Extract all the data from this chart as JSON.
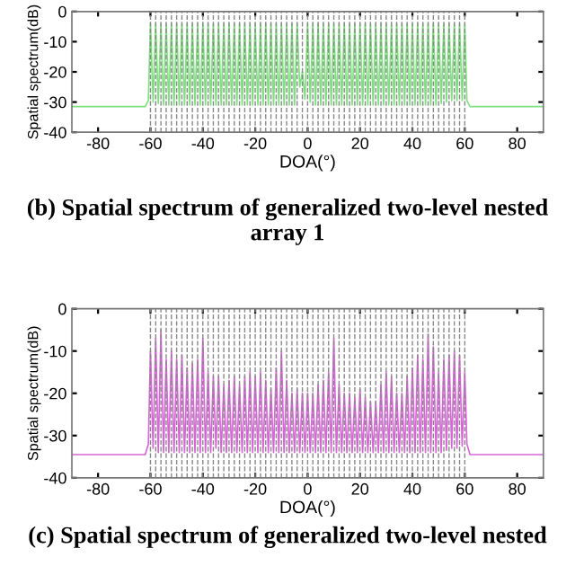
{
  "chart_data": [
    {
      "type": "line",
      "title": "(b) Spatial spectrum of generalized two-level nested array 1",
      "xlabel": "DOA(°)",
      "ylabel": "Spatial spectrum(dB)",
      "xlim": [
        -90,
        90
      ],
      "xticks": [
        -80,
        -60,
        -40,
        -20,
        0,
        20,
        40,
        60,
        80
      ],
      "ylim": [
        -40,
        0
      ],
      "yticks": [
        -40,
        -30,
        -20,
        -10,
        0
      ],
      "grid": false,
      "marker": "none",
      "line_style": "solid",
      "ref_lines": [
        {
          "axis": "x",
          "value": -60
        },
        {
          "axis": "x",
          "value": -58
        },
        {
          "axis": "x",
          "value": -56
        },
        {
          "axis": "x",
          "value": -54
        },
        {
          "axis": "x",
          "value": -52
        },
        {
          "axis": "x",
          "value": -50
        },
        {
          "axis": "x",
          "value": -48
        },
        {
          "axis": "x",
          "value": -46
        },
        {
          "axis": "x",
          "value": -44
        },
        {
          "axis": "x",
          "value": -42
        },
        {
          "axis": "x",
          "value": -40
        },
        {
          "axis": "x",
          "value": -38
        },
        {
          "axis": "x",
          "value": -36
        },
        {
          "axis": "x",
          "value": -34
        },
        {
          "axis": "x",
          "value": -32
        },
        {
          "axis": "x",
          "value": -30
        },
        {
          "axis": "x",
          "value": -28
        },
        {
          "axis": "x",
          "value": -26
        },
        {
          "axis": "x",
          "value": -24
        },
        {
          "axis": "x",
          "value": -22
        },
        {
          "axis": "x",
          "value": -20
        },
        {
          "axis": "x",
          "value": -18
        },
        {
          "axis": "x",
          "value": -16
        },
        {
          "axis": "x",
          "value": -14
        },
        {
          "axis": "x",
          "value": -12
        },
        {
          "axis": "x",
          "value": -10
        },
        {
          "axis": "x",
          "value": -8
        },
        {
          "axis": "x",
          "value": -6
        },
        {
          "axis": "x",
          "value": -4
        },
        {
          "axis": "x",
          "value": -2
        },
        {
          "axis": "x",
          "value": 0
        },
        {
          "axis": "x",
          "value": 2
        },
        {
          "axis": "x",
          "value": 4
        },
        {
          "axis": "x",
          "value": 6
        },
        {
          "axis": "x",
          "value": 8
        },
        {
          "axis": "x",
          "value": 10
        },
        {
          "axis": "x",
          "value": 12
        },
        {
          "axis": "x",
          "value": 14
        },
        {
          "axis": "x",
          "value": 16
        },
        {
          "axis": "x",
          "value": 18
        },
        {
          "axis": "x",
          "value": 20
        },
        {
          "axis": "x",
          "value": 22
        },
        {
          "axis": "x",
          "value": 24
        },
        {
          "axis": "x",
          "value": 26
        },
        {
          "axis": "x",
          "value": 28
        },
        {
          "axis": "x",
          "value": 30
        },
        {
          "axis": "x",
          "value": 32
        },
        {
          "axis": "x",
          "value": 34
        },
        {
          "axis": "x",
          "value": 36
        },
        {
          "axis": "x",
          "value": 38
        },
        {
          "axis": "x",
          "value": 40
        },
        {
          "axis": "x",
          "value": 42
        },
        {
          "axis": "x",
          "value": 44
        },
        {
          "axis": "x",
          "value": 46
        },
        {
          "axis": "x",
          "value": 48
        },
        {
          "axis": "x",
          "value": 50
        },
        {
          "axis": "x",
          "value": 52
        },
        {
          "axis": "x",
          "value": 54
        },
        {
          "axis": "x",
          "value": 56
        },
        {
          "axis": "x",
          "value": 58
        },
        {
          "axis": "x",
          "value": 60
        }
      ],
      "series": [
        {
          "color": "#7fe07f",
          "x": [
            -90,
            -62,
            -60.8,
            -60,
            -59,
            -58,
            -57,
            -56,
            -55,
            -54,
            -53,
            -52,
            -51,
            -50,
            -49,
            -48,
            -47,
            -46,
            -45,
            -44,
            -43,
            -42,
            -41,
            -40,
            -39,
            -38,
            -37,
            -36,
            -35,
            -34,
            -33,
            -32,
            -31,
            -30,
            -29,
            -28,
            -27,
            -26,
            -25,
            -24,
            -23,
            -22,
            -21,
            -20,
            -19,
            -18,
            -17,
            -16,
            -15,
            -14,
            -13,
            -12,
            -11,
            -10,
            -9,
            -8,
            -7,
            -6,
            -5,
            -4,
            -3,
            -2,
            -1,
            0,
            1,
            2,
            3,
            4,
            5,
            6,
            7,
            8,
            9,
            10,
            11,
            12,
            13,
            14,
            15,
            16,
            17,
            18,
            19,
            20,
            21,
            22,
            23,
            24,
            25,
            26,
            27,
            28,
            29,
            30,
            31,
            32,
            33,
            34,
            35,
            36,
            37,
            38,
            39,
            40,
            41,
            42,
            43,
            44,
            45,
            46,
            47,
            48,
            49,
            50,
            51,
            52,
            53,
            54,
            55,
            56,
            57,
            58,
            59,
            60,
            60.8,
            62,
            90
          ],
          "values": [
            -31.5,
            -31.5,
            -29.5,
            -4,
            -30,
            -4,
            -30.5,
            -4,
            -31,
            -4,
            -31,
            -4,
            -31,
            -4,
            -31,
            -4,
            -31,
            -4,
            -31,
            -4,
            -31,
            -4,
            -31,
            -4,
            -31,
            -4,
            -31,
            -4,
            -31,
            -4,
            -31,
            -4,
            -31,
            -4,
            -31,
            -4,
            -31,
            -4,
            -31,
            -4,
            -31,
            -4,
            -31,
            -4,
            -31,
            -4,
            -31,
            -4,
            -31,
            -4,
            -31,
            -4,
            -31,
            -4,
            -31,
            -4,
            -31,
            -4,
            -31,
            -4,
            -25,
            -20,
            -29,
            -4,
            -30,
            -4,
            -31,
            -4,
            -31,
            -4,
            -31,
            -4,
            -31,
            -4,
            -31,
            -4,
            -31,
            -4,
            -31,
            -4,
            -31,
            -4,
            -31,
            -4,
            -31,
            -4,
            -31,
            -4,
            -31,
            -4,
            -31,
            -4,
            -31,
            -4,
            -31,
            -4,
            -31,
            -4,
            -31,
            -4,
            -31,
            -4,
            -31,
            -4,
            -31,
            -4,
            -31,
            -4,
            -31,
            -4,
            -31,
            -4,
            -31,
            -4,
            -30.5,
            -4,
            -30,
            -4,
            -29.5,
            -4,
            -29.5,
            -4,
            -29.5,
            -4,
            -29.5,
            -31.5,
            -31.5
          ]
        }
      ]
    },
    {
      "type": "line",
      "title": "(c) Spatial spectrum of generalized two-level nested",
      "xlabel": "DOA(°)",
      "ylabel": "Spatial spectrum(dB)",
      "xlim": [
        -90,
        90
      ],
      "xticks": [
        -80,
        -60,
        -40,
        -20,
        0,
        20,
        40,
        60,
        80
      ],
      "ylim": [
        -40,
        0
      ],
      "yticks": [
        -40,
        -30,
        -20,
        -10,
        0
      ],
      "grid": false,
      "marker": "none",
      "line_style": "solid",
      "ref_lines": [
        {
          "axis": "x",
          "value": -60
        },
        {
          "axis": "x",
          "value": -58
        },
        {
          "axis": "x",
          "value": -56
        },
        {
          "axis": "x",
          "value": -54
        },
        {
          "axis": "x",
          "value": -52
        },
        {
          "axis": "x",
          "value": -50
        },
        {
          "axis": "x",
          "value": -48
        },
        {
          "axis": "x",
          "value": -46
        },
        {
          "axis": "x",
          "value": -44
        },
        {
          "axis": "x",
          "value": -42
        },
        {
          "axis": "x",
          "value": -40
        },
        {
          "axis": "x",
          "value": -38
        },
        {
          "axis": "x",
          "value": -36
        },
        {
          "axis": "x",
          "value": -34
        },
        {
          "axis": "x",
          "value": -32
        },
        {
          "axis": "x",
          "value": -30
        },
        {
          "axis": "x",
          "value": -28
        },
        {
          "axis": "x",
          "value": -26
        },
        {
          "axis": "x",
          "value": -24
        },
        {
          "axis": "x",
          "value": -22
        },
        {
          "axis": "x",
          "value": -20
        },
        {
          "axis": "x",
          "value": -18
        },
        {
          "axis": "x",
          "value": -16
        },
        {
          "axis": "x",
          "value": -14
        },
        {
          "axis": "x",
          "value": -12
        },
        {
          "axis": "x",
          "value": -10
        },
        {
          "axis": "x",
          "value": -8
        },
        {
          "axis": "x",
          "value": -6
        },
        {
          "axis": "x",
          "value": -4
        },
        {
          "axis": "x",
          "value": -2
        },
        {
          "axis": "x",
          "value": 0
        },
        {
          "axis": "x",
          "value": 2
        },
        {
          "axis": "x",
          "value": 4
        },
        {
          "axis": "x",
          "value": 6
        },
        {
          "axis": "x",
          "value": 8
        },
        {
          "axis": "x",
          "value": 10
        },
        {
          "axis": "x",
          "value": 12
        },
        {
          "axis": "x",
          "value": 14
        },
        {
          "axis": "x",
          "value": 16
        },
        {
          "axis": "x",
          "value": 18
        },
        {
          "axis": "x",
          "value": 20
        },
        {
          "axis": "x",
          "value": 22
        },
        {
          "axis": "x",
          "value": 24
        },
        {
          "axis": "x",
          "value": 26
        },
        {
          "axis": "x",
          "value": 28
        },
        {
          "axis": "x",
          "value": 30
        },
        {
          "axis": "x",
          "value": 32
        },
        {
          "axis": "x",
          "value": 34
        },
        {
          "axis": "x",
          "value": 36
        },
        {
          "axis": "x",
          "value": 38
        },
        {
          "axis": "x",
          "value": 40
        },
        {
          "axis": "x",
          "value": 42
        },
        {
          "axis": "x",
          "value": 44
        },
        {
          "axis": "x",
          "value": 46
        },
        {
          "axis": "x",
          "value": 48
        },
        {
          "axis": "x",
          "value": 50
        },
        {
          "axis": "x",
          "value": 52
        },
        {
          "axis": "x",
          "value": 54
        },
        {
          "axis": "x",
          "value": 56
        },
        {
          "axis": "x",
          "value": 58
        },
        {
          "axis": "x",
          "value": 60
        }
      ],
      "series": [
        {
          "color": "#d966d9",
          "x": [
            -90,
            -62,
            -60.8,
            -60,
            -59,
            -58,
            -57,
            -56,
            -55,
            -54,
            -53,
            -52,
            -51,
            -50,
            -49,
            -48,
            -47,
            -46,
            -45,
            -44,
            -43,
            -42,
            -41,
            -40,
            -39,
            -38,
            -37,
            -36,
            -35,
            -34,
            -33,
            -32,
            -31,
            -30,
            -29,
            -28,
            -27,
            -26,
            -25,
            -24,
            -23,
            -22,
            -21,
            -20,
            -19,
            -18,
            -17,
            -16,
            -15,
            -14,
            -13,
            -12,
            -11,
            -10,
            -9,
            -8,
            -7,
            -6,
            -5,
            -4,
            -3,
            -2,
            -1,
            0,
            1,
            2,
            3,
            4,
            5,
            6,
            7,
            8,
            9,
            10,
            11,
            12,
            13,
            14,
            15,
            16,
            17,
            18,
            19,
            20,
            21,
            22,
            23,
            24,
            25,
            26,
            27,
            28,
            29,
            30,
            31,
            32,
            33,
            34,
            35,
            36,
            37,
            38,
            39,
            40,
            41,
            42,
            43,
            44,
            45,
            46,
            47,
            48,
            49,
            50,
            51,
            52,
            53,
            54,
            55,
            56,
            57,
            58,
            59,
            60,
            60.8,
            62,
            90
          ],
          "values": [
            -34.5,
            -34.5,
            -32,
            -10,
            -33,
            -7,
            -34,
            -5,
            -34,
            -12,
            -34,
            -10,
            -34,
            -12,
            -34,
            -11,
            -34,
            -14,
            -34,
            -13,
            -34,
            -12,
            -34,
            -7,
            -34,
            -15,
            -34,
            -16,
            -33,
            -16,
            -34,
            -18,
            -34,
            -17,
            -34,
            -16,
            -34,
            -18,
            -34,
            -16,
            -34,
            -15,
            -34,
            -16,
            -34,
            -15,
            -34,
            -17,
            -34,
            -19,
            -34,
            -14,
            -34,
            -10,
            -34,
            -17,
            -34,
            -20,
            -34,
            -19,
            -34,
            -20,
            -34,
            -20,
            -34,
            -20,
            -34,
            -18,
            -34,
            -17,
            -34,
            -15,
            -34,
            -7,
            -34,
            -18,
            -34,
            -20,
            -34,
            -20,
            -34,
            -21,
            -34,
            -19,
            -34,
            -21,
            -34,
            -22,
            -34,
            -22,
            -34,
            -18,
            -34,
            -15,
            -34,
            -16,
            -34,
            -20,
            -34,
            -20,
            -34,
            -16,
            -34,
            -14,
            -34,
            -11,
            -34,
            -12,
            -34,
            -6,
            -34,
            -9,
            -34,
            -15,
            -34,
            -12,
            -33.5,
            -11,
            -33,
            -10,
            -33,
            -11,
            -32.5,
            -15,
            -32,
            -34.5,
            -34.5
          ]
        }
      ]
    }
  ]
}
